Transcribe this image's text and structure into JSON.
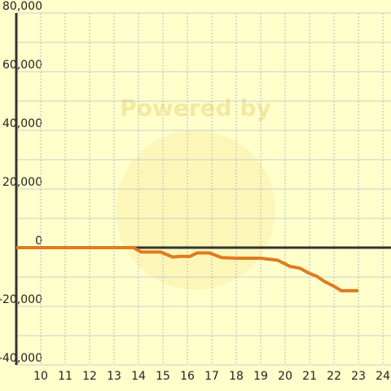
{
  "chart_data": {
    "type": "line",
    "watermark": "Powered by",
    "x": [
      9,
      13.8,
      14.1,
      14.9,
      15.4,
      15.7,
      16.1,
      16.4,
      16.9,
      17.4,
      18,
      19,
      19.7,
      20.2,
      20.6,
      21,
      21.3,
      21.6,
      22,
      22.3,
      23
    ],
    "series": [
      {
        "color": "#e07b20",
        "values": [
          0,
          0,
          -1500,
          -1500,
          -3200,
          -3000,
          -3000,
          -1800,
          -1800,
          -3400,
          -3600,
          -3600,
          -4300,
          -6400,
          -7000,
          -8800,
          -9800,
          -11500,
          -13200,
          -14700,
          -14700
        ]
      }
    ],
    "xlim": [
      9,
      24.33
    ],
    "xticks": [
      10,
      11,
      12,
      13,
      14,
      15,
      16,
      17,
      18,
      19,
      20,
      21,
      22,
      23,
      24
    ],
    "ylim": [
      -40000,
      80000
    ],
    "yticks": [
      {
        "value": -40000,
        "label": "-40,000"
      },
      {
        "value": -20000,
        "label": "-20,000"
      },
      0,
      {
        "value": 20000,
        "label": "20,000"
      },
      {
        "value": 40000,
        "label": "40,000"
      },
      {
        "value": 60000,
        "label": "60,000"
      },
      {
        "value": 80000,
        "label": "80,000"
      }
    ],
    "y_minor_grid": [
      -30000,
      -10000,
      10000,
      30000,
      50000,
      70000
    ],
    "grid": true
  }
}
